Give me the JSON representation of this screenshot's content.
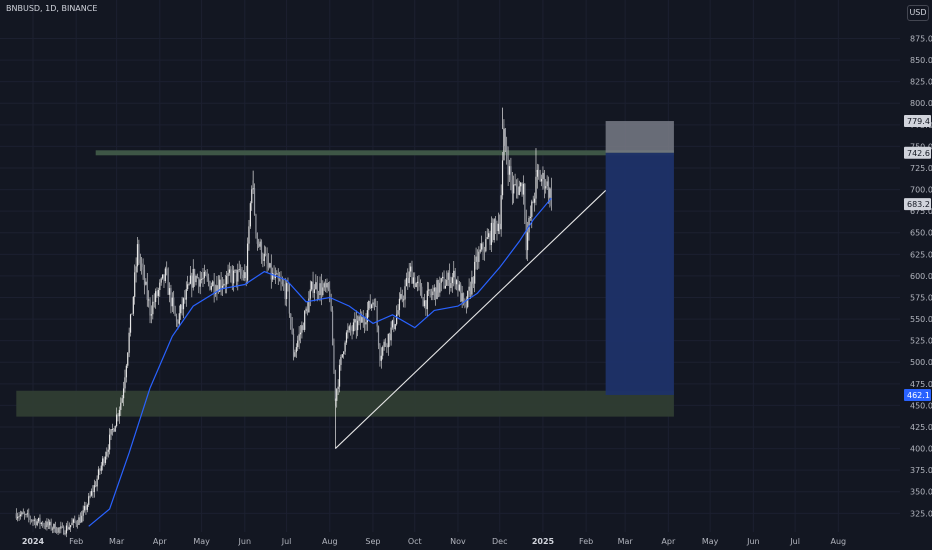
{
  "header": {
    "symbol": "BNBUSD, 1D, BINANCE",
    "currency_button": "USD"
  },
  "colors": {
    "background": "#131722",
    "candle": "#e6e6e6",
    "ma_line": "#2962ff",
    "support_zone": "#2f3d33",
    "resistance_line": "#3e5646",
    "target_box": "#1e3269",
    "stop_box": "#787b86",
    "trendline": "#e6e6e6",
    "axis_text": "#b2b5be",
    "price_label_bg": "#d1d4dc",
    "price_label_blue": "#2962ff"
  },
  "chart_data": {
    "type": "candlestick",
    "y_ticks": [
      325.0,
      350.0,
      375.0,
      400.0,
      425.0,
      450.0,
      475.0,
      500.0,
      525.0,
      550.0,
      575.0,
      600.0,
      625.0,
      650.0,
      675.0,
      700.0,
      725.0,
      750.0,
      775.0,
      800.0,
      825.0,
      850.0,
      875.0
    ],
    "y_tick_labels": [
      "325.0",
      "350.0",
      "375.0",
      "400.0",
      "425.0",
      "450.0",
      "475.0",
      "500.0",
      "525.0",
      "550.0",
      "575.0",
      "600.0",
      "625.0",
      "650.0",
      "675.0",
      "700.0",
      "725.0",
      "750.0",
      "775.0",
      "800.0",
      "825.0",
      "850.0",
      "875.0"
    ],
    "x_ticks": [
      {
        "date": "2024-01-01",
        "label": "2024",
        "bold": true
      },
      {
        "date": "2024-02-01",
        "label": "Feb"
      },
      {
        "date": "2024-03-01",
        "label": "Mar"
      },
      {
        "date": "2024-04-01",
        "label": "Apr"
      },
      {
        "date": "2024-05-01",
        "label": "May"
      },
      {
        "date": "2024-06-01",
        "label": "Jun"
      },
      {
        "date": "2024-07-01",
        "label": "Jul"
      },
      {
        "date": "2024-08-01",
        "label": "Aug"
      },
      {
        "date": "2024-09-01",
        "label": "Sep"
      },
      {
        "date": "2024-10-01",
        "label": "Oct"
      },
      {
        "date": "2024-11-01",
        "label": "Nov"
      },
      {
        "date": "2024-12-01",
        "label": "Dec"
      },
      {
        "date": "2025-01-01",
        "label": "2025",
        "bold": true
      },
      {
        "date": "2025-02-01",
        "label": "Feb"
      },
      {
        "date": "2025-03-01",
        "label": "Mar"
      },
      {
        "date": "2025-04-01",
        "label": "Apr"
      },
      {
        "date": "2025-05-01",
        "label": "May"
      },
      {
        "date": "2025-06-01",
        "label": "Jun"
      },
      {
        "date": "2025-07-01",
        "label": "Jul"
      },
      {
        "date": "2025-08-01",
        "label": "Aug"
      }
    ],
    "price_path": [
      [
        "2023-12-20",
        325
      ],
      [
        "2024-01-05",
        315
      ],
      [
        "2024-01-22",
        305
      ],
      [
        "2024-02-05",
        320
      ],
      [
        "2024-02-15",
        360
      ],
      [
        "2024-02-25",
        410
      ],
      [
        "2024-03-05",
        460
      ],
      [
        "2024-03-12",
        560
      ],
      [
        "2024-03-16",
        630
      ],
      [
        "2024-03-25",
        560
      ],
      [
        "2024-04-05",
        600
      ],
      [
        "2024-04-13",
        545
      ],
      [
        "2024-04-25",
        600
      ],
      [
        "2024-05-10",
        590
      ],
      [
        "2024-05-25",
        600
      ],
      [
        "2024-06-02",
        600
      ],
      [
        "2024-06-06",
        710
      ],
      [
        "2024-06-10",
        640
      ],
      [
        "2024-06-20",
        600
      ],
      [
        "2024-07-02",
        580
      ],
      [
        "2024-07-06",
        510
      ],
      [
        "2024-07-12",
        540
      ],
      [
        "2024-07-20",
        590
      ],
      [
        "2024-08-01",
        580
      ],
      [
        "2024-08-05",
        460
      ],
      [
        "2024-08-12",
        530
      ],
      [
        "2024-08-25",
        550
      ],
      [
        "2024-09-02",
        575
      ],
      [
        "2024-09-06",
        510
      ],
      [
        "2024-09-15",
        540
      ],
      [
        "2024-09-28",
        605
      ],
      [
        "2024-10-08",
        570
      ],
      [
        "2024-10-20",
        590
      ],
      [
        "2024-10-30",
        600
      ],
      [
        "2024-11-06",
        560
      ],
      [
        "2024-11-15",
        620
      ],
      [
        "2024-11-25",
        650
      ],
      [
        "2024-12-01",
        665
      ],
      [
        "2024-12-04",
        760
      ],
      [
        "2024-12-10",
        700
      ],
      [
        "2024-12-18",
        705
      ],
      [
        "2024-12-20",
        640
      ],
      [
        "2024-12-28",
        715
      ],
      [
        "2025-01-03",
        710
      ],
      [
        "2025-01-07",
        690
      ]
    ],
    "ma_path": [
      [
        "2024-02-10",
        310
      ],
      [
        "2024-02-25",
        330
      ],
      [
        "2024-03-10",
        395
      ],
      [
        "2024-03-25",
        470
      ],
      [
        "2024-04-10",
        530
      ],
      [
        "2024-04-25",
        565
      ],
      [
        "2024-05-15",
        585
      ],
      [
        "2024-06-01",
        590
      ],
      [
        "2024-06-15",
        605
      ],
      [
        "2024-07-01",
        595
      ],
      [
        "2024-07-15",
        570
      ],
      [
        "2024-08-01",
        575
      ],
      [
        "2024-08-15",
        565
      ],
      [
        "2024-09-01",
        545
      ],
      [
        "2024-09-15",
        555
      ],
      [
        "2024-10-01",
        540
      ],
      [
        "2024-10-15",
        560
      ],
      [
        "2024-11-01",
        565
      ],
      [
        "2024-11-15",
        580
      ],
      [
        "2024-12-01",
        610
      ],
      [
        "2024-12-15",
        640
      ],
      [
        "2024-12-25",
        665
      ],
      [
        "2025-01-07",
        690
      ]
    ],
    "support_zone": {
      "from": "2023-12-20",
      "to": "2025-04-05",
      "low": 437,
      "high": 467
    },
    "resistance_line": {
      "from": "2024-02-15",
      "to": "2025-04-05",
      "value": 742.6
    },
    "trendline": {
      "from": [
        "2024-08-05",
        400
      ],
      "to": [
        "2025-02-15",
        699
      ]
    },
    "position": {
      "from": "2025-02-15",
      "to": "2025-04-05",
      "stop": 779.4,
      "entry": 742.6,
      "target": 462.1
    },
    "price_labels": [
      {
        "value": 779.4,
        "text": "779.4",
        "style": "light"
      },
      {
        "value": 742.6,
        "text": "742.6",
        "style": "light"
      },
      {
        "value": 683.2,
        "text": "683.2",
        "style": "light"
      },
      {
        "value": 462.1,
        "text": "462.1",
        "style": "blue"
      }
    ]
  }
}
